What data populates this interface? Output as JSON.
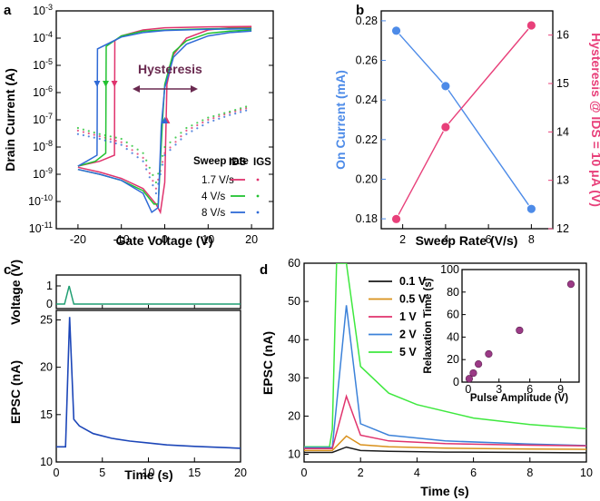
{
  "chart_data": [
    {
      "panel": "a",
      "type": "line",
      "xlabel": "Gate Voltage (V)",
      "ylabel": "Drain Current (A)",
      "yscale": "log",
      "xlim": [
        -25,
        25
      ],
      "ylim": [
        1e-11,
        0.001
      ],
      "xticks": [
        "-20",
        "-10",
        "0",
        "10",
        "20"
      ],
      "yticks": [
        "10-11",
        "10-10",
        "10-9",
        "10-8",
        "10-7",
        "10-6",
        "10-5",
        "10-4",
        "10-3"
      ],
      "annotation": "Hysteresis",
      "legend": {
        "title": "Sweep rate",
        "col1": "IDS",
        "col2": "IGS",
        "entries": [
          "1.7 V/s",
          "4 V/s",
          "8 V/s"
        ]
      },
      "series": [
        {
          "name": "1.7 V/s",
          "color": "#e0336d",
          "forward": {
            "x": [
              -20,
              -15,
              -10,
              -5,
              -2,
              -1,
              0,
              0.5,
              2,
              5,
              10,
              15,
              20
            ],
            "y": [
              1.8e-09,
              1.2e-09,
              7e-10,
              3e-10,
              8e-11,
              4e-11,
              5e-10,
              2e-06,
              2.5e-05,
              0.0001,
              0.0002,
              0.00024,
              0.00026
            ]
          },
          "backward": {
            "x": [
              20,
              10,
              0,
              -5,
              -10,
              -11.5,
              -11.6,
              -15,
              -20
            ],
            "y": [
              0.00027,
              0.00026,
              0.00024,
              0.0002,
              0.00012,
              8e-05,
              5e-09,
              3e-09,
              2e-09
            ]
          },
          "igs": {
            "x": [
              -20,
              -15,
              -10,
              -5,
              -2,
              0,
              5,
              10,
              15,
              20
            ],
            "y": [
              4e-08,
              2.5e-08,
              1.5e-08,
              4e-09,
              3e-10,
              6e-09,
              4e-08,
              1e-07,
              1.8e-07,
              3e-07
            ]
          }
        },
        {
          "name": "4 V/s",
          "color": "#22c231",
          "forward": {
            "x": [
              -20,
              -15,
              -10,
              -5,
              -2.5,
              -1.5,
              -0.5,
              0,
              2,
              5,
              10,
              15,
              20
            ],
            "y": [
              1.5e-09,
              1e-09,
              6e-10,
              2.5e-10,
              8e-11,
              8e-11,
              1e-07,
              2e-06,
              3e-05,
              8e-05,
              0.00015,
              0.00018,
              0.0002
            ]
          },
          "backward": {
            "x": [
              20,
              10,
              0,
              -5,
              -10,
              -13.5,
              -13.6,
              -16,
              -20
            ],
            "y": [
              0.00023,
              0.00022,
              0.0002,
              0.00018,
              0.00012,
              5e-05,
              6e-09,
              3e-09,
              2e-09
            ]
          },
          "igs": {
            "x": [
              -20,
              -15,
              -10,
              -5,
              -2,
              0,
              5,
              10,
              15,
              20
            ],
            "y": [
              5e-08,
              3e-08,
              2e-08,
              6e-09,
              5e-10,
              1e-08,
              5e-08,
              1.2e-07,
              2e-07,
              3.5e-07
            ]
          }
        },
        {
          "name": "8 V/s",
          "color": "#2f6ad6",
          "forward": {
            "x": [
              -20,
              -15,
              -10,
              -5,
              -3,
              -1.5,
              -0.8,
              0,
              2,
              5,
              10,
              15,
              20
            ],
            "y": [
              1.5e-09,
              1e-09,
              6e-10,
              2e-10,
              4e-11,
              6e-11,
              6e-08,
              1.5e-06,
              2e-05,
              6e-05,
              0.00012,
              0.00016,
              0.00018
            ]
          },
          "backward": {
            "x": [
              20,
              10,
              0,
              -5,
              -10,
              -15.5,
              -15.6,
              -18,
              -20
            ],
            "y": [
              0.00022,
              0.00021,
              0.00019,
              0.00016,
              0.00011,
              4e-05,
              5e-09,
              3e-09,
              2e-09
            ]
          },
          "igs": {
            "x": [
              -20,
              -15,
              -10,
              -5,
              -2,
              0,
              5,
              10,
              15,
              20
            ],
            "y": [
              3e-08,
              2e-08,
              1.2e-08,
              3e-09,
              2e-10,
              5e-09,
              3e-08,
              8e-08,
              1.5e-07,
              2.5e-07
            ]
          }
        }
      ]
    },
    {
      "panel": "b",
      "type": "line",
      "xlabel": "Sweep Rate (V/s)",
      "ylabel_left": "On Current (mA)",
      "ylabel_right": "Hysteresis @ IDS = 10 μA (V)",
      "xlim": [
        1,
        9
      ],
      "ylim_left": [
        0.175,
        0.285
      ],
      "ylim_right": [
        12,
        16.5
      ],
      "xticks": [
        "2",
        "4",
        "6",
        "8"
      ],
      "yticks_left": [
        "0.18",
        "0.20",
        "0.22",
        "0.24",
        "0.26",
        "0.28"
      ],
      "yticks_right": [
        "12",
        "13",
        "14",
        "15",
        "16"
      ],
      "x": [
        1.7,
        4,
        8
      ],
      "series": [
        {
          "name": "On Current",
          "axis": "left",
          "color": "#4d8be8",
          "values": [
            0.275,
            0.247,
            0.185
          ]
        },
        {
          "name": "Hysteresis",
          "axis": "right",
          "color": "#e8407a",
          "values": [
            12.2,
            14.1,
            16.2
          ]
        }
      ]
    },
    {
      "panel": "c",
      "type": "line",
      "xlabel": "Time (s)",
      "top": {
        "ylabel": "Voltage (V)",
        "yticks": [
          "0",
          "1"
        ],
        "ylim": [
          -0.25,
          1.6
        ],
        "color": "#1f9e72",
        "x": [
          0,
          0.9,
          1.4,
          1.9,
          20
        ],
        "y": [
          0,
          0,
          1,
          0,
          0
        ]
      },
      "bottom": {
        "ylabel": "EPSC (nA)",
        "yticks": [
          "10",
          "15",
          "20",
          "25"
        ],
        "ylim": [
          10,
          26
        ],
        "color": "#1c46b8",
        "x": [
          0,
          0.9,
          1.0,
          1.45,
          1.9,
          2.5,
          4,
          6,
          8,
          10,
          12,
          15,
          20
        ],
        "y": [
          11.6,
          11.6,
          11.6,
          25.3,
          14.5,
          13.8,
          13.0,
          12.5,
          12.2,
          12.0,
          11.8,
          11.65,
          11.45
        ]
      },
      "xlim": [
        0,
        20
      ],
      "xticks": [
        "0",
        "5",
        "10",
        "15",
        "20"
      ]
    },
    {
      "panel": "d",
      "type": "line",
      "xlabel": "Time (s)",
      "ylabel": "EPSC (nA)",
      "xlim": [
        0,
        10
      ],
      "ylim": [
        8,
        60
      ],
      "xticks": [
        "0",
        "2",
        "4",
        "6",
        "8",
        "10"
      ],
      "yticks": [
        "10",
        "20",
        "30",
        "40",
        "50",
        "60"
      ],
      "series": [
        {
          "name": "0.1 V",
          "color": "#1a1a1a",
          "x": [
            0,
            1,
            1.5,
            2,
            3,
            5,
            8,
            10
          ],
          "y": [
            10.5,
            10.5,
            11.9,
            11,
            10.8,
            10.6,
            10.5,
            10.4
          ]
        },
        {
          "name": "0.5 V",
          "color": "#d9901a",
          "x": [
            0,
            1,
            1.5,
            2,
            3,
            5,
            8,
            10
          ],
          "y": [
            11,
            11,
            14.8,
            12.5,
            12,
            11.6,
            11.4,
            11.3
          ]
        },
        {
          "name": "1 V",
          "color": "#e0336d",
          "x": [
            0,
            1,
            1.5,
            2,
            3,
            5,
            8,
            10
          ],
          "y": [
            11.5,
            11.5,
            25.2,
            15,
            13.5,
            12.8,
            12.4,
            12.2
          ]
        },
        {
          "name": "2 V",
          "color": "#3c82d9",
          "x": [
            0,
            1,
            1.5,
            2,
            3,
            5,
            8,
            10
          ],
          "y": [
            11.8,
            11.8,
            49,
            18,
            15,
            13.5,
            12.7,
            12.3
          ]
        },
        {
          "name": "5 V",
          "color": "#3ee83e",
          "x": [
            0,
            0.9,
            1,
            1.15,
            1.3,
            1.5,
            2,
            3,
            4,
            6,
            8,
            10
          ],
          "y": [
            12,
            12,
            16.5,
            60,
            60,
            60,
            33,
            26,
            23,
            19.5,
            17.8,
            16.7
          ]
        }
      ],
      "inset": {
        "type": "scatter",
        "xlabel": "Pulse Amplitude (V)",
        "ylabel": "Relaxation Time (s)",
        "xlim": [
          -0.6,
          10.8
        ],
        "ylim": [
          0,
          100
        ],
        "xticks": [
          "0",
          "3",
          "6",
          "9"
        ],
        "yticks": [
          "0",
          "20",
          "40",
          "60",
          "80",
          "100"
        ],
        "color": "#9b3a86",
        "x": [
          0.1,
          0.5,
          1,
          2,
          5,
          10
        ],
        "y": [
          3,
          8,
          16,
          25,
          46,
          87
        ]
      }
    }
  ]
}
